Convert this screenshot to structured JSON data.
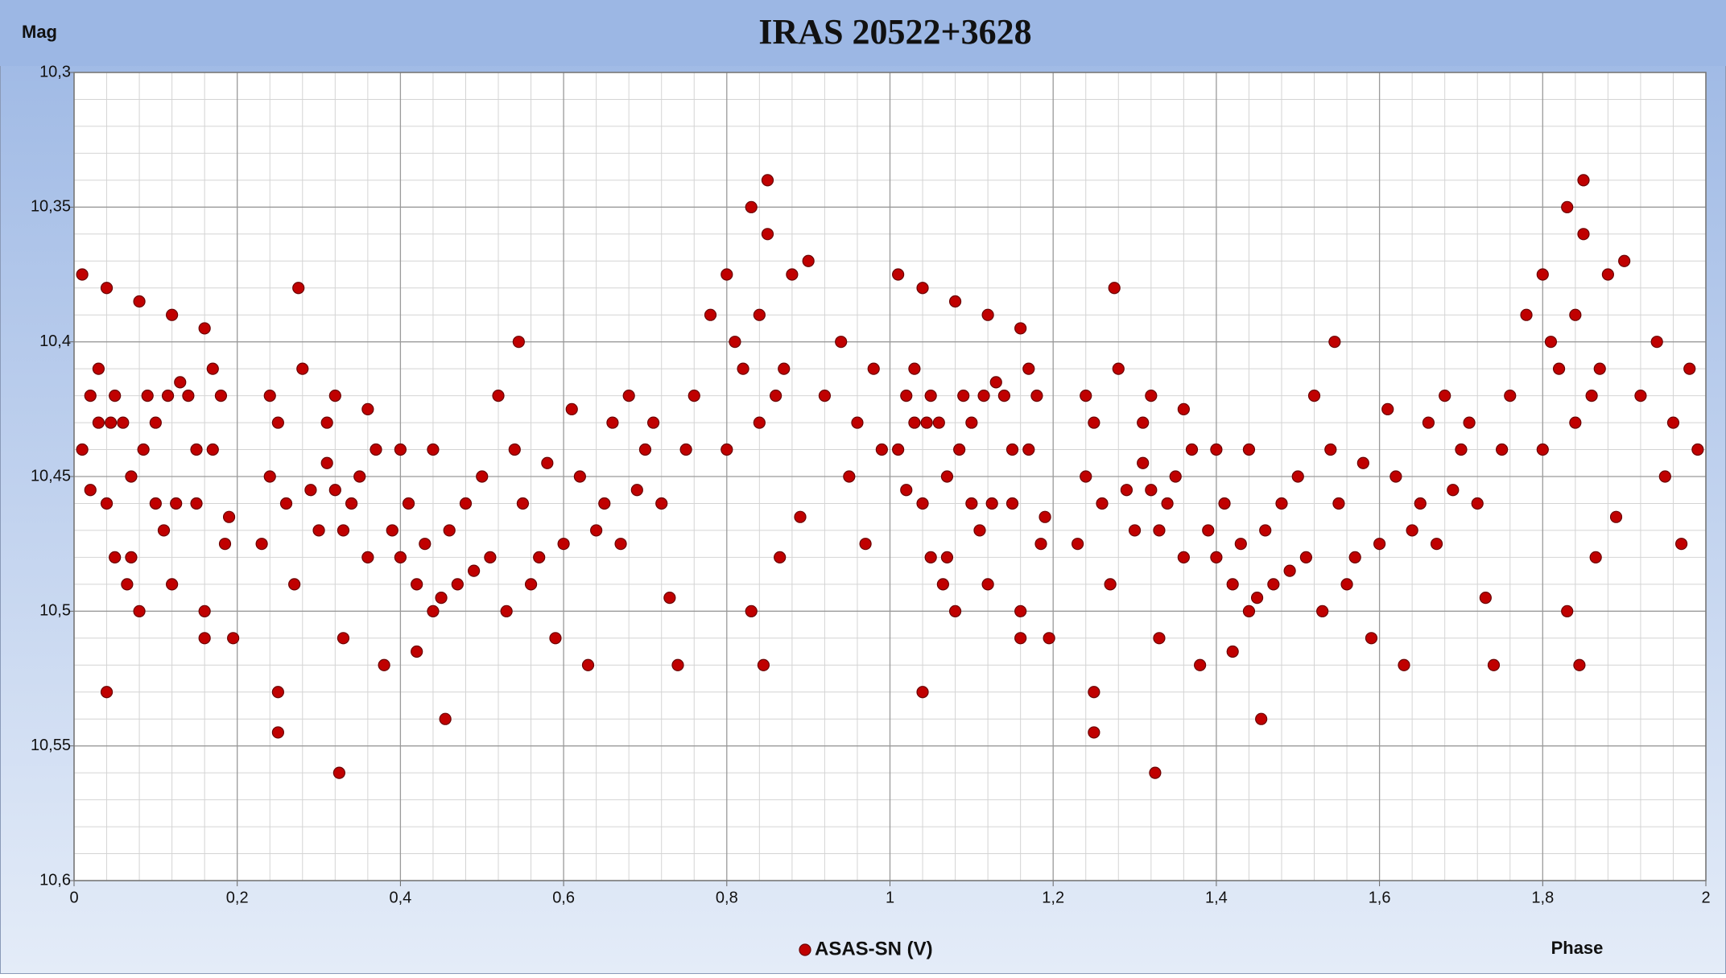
{
  "chart_data": {
    "type": "scatter",
    "title": "IRAS 20522+3628",
    "y_label": "Mag",
    "x_label": "Phase",
    "xlim": [
      0,
      2
    ],
    "ylim": [
      10.3,
      10.6
    ],
    "y_inverted": true,
    "grid": true,
    "legend": "bottom",
    "xticks": [
      0,
      {
        "value": 0.2,
        "label": "0,2"
      },
      {
        "value": 0.4,
        "label": "0,4"
      },
      {
        "value": 0.6,
        "label": "0,6"
      },
      {
        "value": 0.8,
        "label": "0,8"
      },
      1,
      {
        "value": 1.2,
        "label": "1,2"
      },
      {
        "value": 1.4,
        "label": "1,4"
      },
      {
        "value": 1.6,
        "label": "1,6"
      },
      {
        "value": 1.8,
        "label": "1,8"
      },
      2
    ],
    "yticks": [
      {
        "value": 10.3,
        "label": "10,3"
      },
      {
        "value": 10.35,
        "label": "10,35"
      },
      {
        "value": 10.4,
        "label": "10,4"
      },
      {
        "value": 10.45,
        "label": "10,45"
      },
      {
        "value": 10.5,
        "label": "10,5"
      },
      {
        "value": 10.55,
        "label": "10,55"
      },
      {
        "value": 10.6,
        "label": "10,6"
      }
    ],
    "series": [
      {
        "name": "ASAS-SN (V)",
        "color": "#c00000",
        "x": [
          0.01,
          0.01,
          0.02,
          0.02,
          0.03,
          0.03,
          0.04,
          0.04,
          0.04,
          0.045,
          0.05,
          0.05,
          0.06,
          0.065,
          0.07,
          0.07,
          0.08,
          0.08,
          0.085,
          0.09,
          0.1,
          0.1,
          0.11,
          0.115,
          0.12,
          0.12,
          0.125,
          0.13,
          0.14,
          0.15,
          0.15,
          0.16,
          0.16,
          0.16,
          0.17,
          0.17,
          0.18,
          0.185,
          0.19,
          0.195,
          0.23,
          0.24,
          0.24,
          0.25,
          0.25,
          0.25,
          0.26,
          0.27,
          0.275,
          0.28,
          0.29,
          0.3,
          0.31,
          0.31,
          0.32,
          0.32,
          0.325,
          0.33,
          0.33,
          0.34,
          0.35,
          0.36,
          0.36,
          0.37,
          0.38,
          0.39,
          0.4,
          0.4,
          0.41,
          0.42,
          0.42,
          0.43,
          0.44,
          0.44,
          0.45,
          0.455,
          0.46,
          0.47,
          0.48,
          0.49,
          0.5,
          0.51,
          0.52,
          0.53,
          0.54,
          0.545,
          0.55,
          0.56,
          0.57,
          0.58,
          0.59,
          0.6,
          0.61,
          0.62,
          0.63,
          0.64,
          0.65,
          0.66,
          0.67,
          0.68,
          0.69,
          0.7,
          0.71,
          0.72,
          0.73,
          0.74,
          0.75,
          0.76,
          0.78,
          0.8,
          0.8,
          0.81,
          0.82,
          0.83,
          0.83,
          0.84,
          0.84,
          0.845,
          0.85,
          0.85,
          0.86,
          0.865,
          0.87,
          0.88,
          0.89,
          0.9,
          0.92,
          0.94,
          0.95,
          0.96,
          0.97,
          0.98,
          0.99,
          1.01,
          1.01,
          1.02,
          1.02,
          1.03,
          1.03,
          1.04,
          1.04,
          1.04,
          1.045,
          1.05,
          1.05,
          1.06,
          1.065,
          1.07,
          1.07,
          1.08,
          1.08,
          1.085,
          1.09,
          1.1,
          1.1,
          1.11,
          1.115,
          1.12,
          1.12,
          1.125,
          1.13,
          1.14,
          1.15,
          1.15,
          1.16,
          1.16,
          1.16,
          1.17,
          1.17,
          1.18,
          1.185,
          1.19,
          1.195,
          1.23,
          1.24,
          1.24,
          1.25,
          1.25,
          1.25,
          1.26,
          1.27,
          1.275,
          1.28,
          1.29,
          1.3,
          1.31,
          1.31,
          1.32,
          1.32,
          1.325,
          1.33,
          1.33,
          1.34,
          1.35,
          1.36,
          1.36,
          1.37,
          1.38,
          1.39,
          1.4,
          1.4,
          1.41,
          1.42,
          1.42,
          1.43,
          1.44,
          1.44,
          1.45,
          1.455,
          1.46,
          1.47,
          1.48,
          1.49,
          1.5,
          1.51,
          1.52,
          1.53,
          1.54,
          1.545,
          1.55,
          1.56,
          1.57,
          1.58,
          1.59,
          1.6,
          1.61,
          1.62,
          1.63,
          1.64,
          1.65,
          1.66,
          1.67,
          1.68,
          1.69,
          1.7,
          1.71,
          1.72,
          1.73,
          1.74,
          1.75,
          1.76,
          1.78,
          1.8,
          1.8,
          1.81,
          1.82,
          1.83,
          1.83,
          1.84,
          1.84,
          1.845,
          1.85,
          1.85,
          1.86,
          1.865,
          1.87,
          1.88,
          1.89,
          1.9,
          1.92,
          1.94,
          1.95,
          1.96,
          1.97,
          1.98,
          1.99
        ],
        "values": [
          10.375,
          10.44,
          10.42,
          10.455,
          10.43,
          10.41,
          10.46,
          10.38,
          10.53,
          10.43,
          10.42,
          10.48,
          10.43,
          10.49,
          10.48,
          10.45,
          10.5,
          10.385,
          10.44,
          10.42,
          10.43,
          10.46,
          10.47,
          10.42,
          10.39,
          10.49,
          10.46,
          10.415,
          10.42,
          10.44,
          10.46,
          10.395,
          10.5,
          10.51,
          10.41,
          10.44,
          10.42,
          10.475,
          10.465,
          10.51,
          10.475,
          10.42,
          10.45,
          10.43,
          10.53,
          10.545,
          10.46,
          10.49,
          10.38,
          10.41,
          10.455,
          10.47,
          10.43,
          10.445,
          10.455,
          10.42,
          10.56,
          10.47,
          10.51,
          10.46,
          10.45,
          10.425,
          10.48,
          10.44,
          10.52,
          10.47,
          10.44,
          10.48,
          10.46,
          10.49,
          10.515,
          10.475,
          10.5,
          10.44,
          10.495,
          10.54,
          10.47,
          10.49,
          10.46,
          10.485,
          10.45,
          10.48,
          10.42,
          10.5,
          10.44,
          10.4,
          10.46,
          10.49,
          10.48,
          10.445,
          10.51,
          10.475,
          10.425,
          10.45,
          10.52,
          10.47,
          10.46,
          10.43,
          10.475,
          10.42,
          10.455,
          10.44,
          10.43,
          10.46,
          10.495,
          10.52,
          10.44,
          10.42,
          10.39,
          10.375,
          10.44,
          10.4,
          10.41,
          10.35,
          10.5,
          10.39,
          10.43,
          10.52,
          10.34,
          10.36,
          10.42,
          10.48,
          10.41,
          10.375,
          10.465,
          10.37,
          10.42,
          10.4,
          10.45,
          10.43,
          10.475,
          10.41,
          10.44,
          10.375,
          10.44,
          10.42,
          10.455,
          10.43,
          10.41,
          10.46,
          10.38,
          10.53,
          10.43,
          10.42,
          10.48,
          10.43,
          10.49,
          10.48,
          10.45,
          10.5,
          10.385,
          10.44,
          10.42,
          10.43,
          10.46,
          10.47,
          10.42,
          10.39,
          10.49,
          10.46,
          10.415,
          10.42,
          10.44,
          10.46,
          10.395,
          10.5,
          10.51,
          10.41,
          10.44,
          10.42,
          10.475,
          10.465,
          10.51,
          10.475,
          10.42,
          10.45,
          10.43,
          10.53,
          10.545,
          10.46,
          10.49,
          10.38,
          10.41,
          10.455,
          10.47,
          10.43,
          10.445,
          10.455,
          10.42,
          10.56,
          10.47,
          10.51,
          10.46,
          10.45,
          10.425,
          10.48,
          10.44,
          10.52,
          10.47,
          10.44,
          10.48,
          10.46,
          10.49,
          10.515,
          10.475,
          10.5,
          10.44,
          10.495,
          10.54,
          10.47,
          10.49,
          10.46,
          10.485,
          10.45,
          10.48,
          10.42,
          10.5,
          10.44,
          10.4,
          10.46,
          10.49,
          10.48,
          10.445,
          10.51,
          10.475,
          10.425,
          10.45,
          10.52,
          10.47,
          10.46,
          10.43,
          10.475,
          10.42,
          10.455,
          10.44,
          10.43,
          10.46,
          10.495,
          10.52,
          10.44,
          10.42,
          10.39,
          10.375,
          10.44,
          10.4,
          10.41,
          10.35,
          10.5,
          10.39,
          10.43,
          10.52,
          10.34,
          10.36,
          10.42,
          10.48,
          10.41,
          10.375,
          10.465,
          10.37,
          10.42,
          10.4,
          10.45,
          10.43,
          10.475,
          10.41,
          10.44
        ]
      }
    ]
  }
}
